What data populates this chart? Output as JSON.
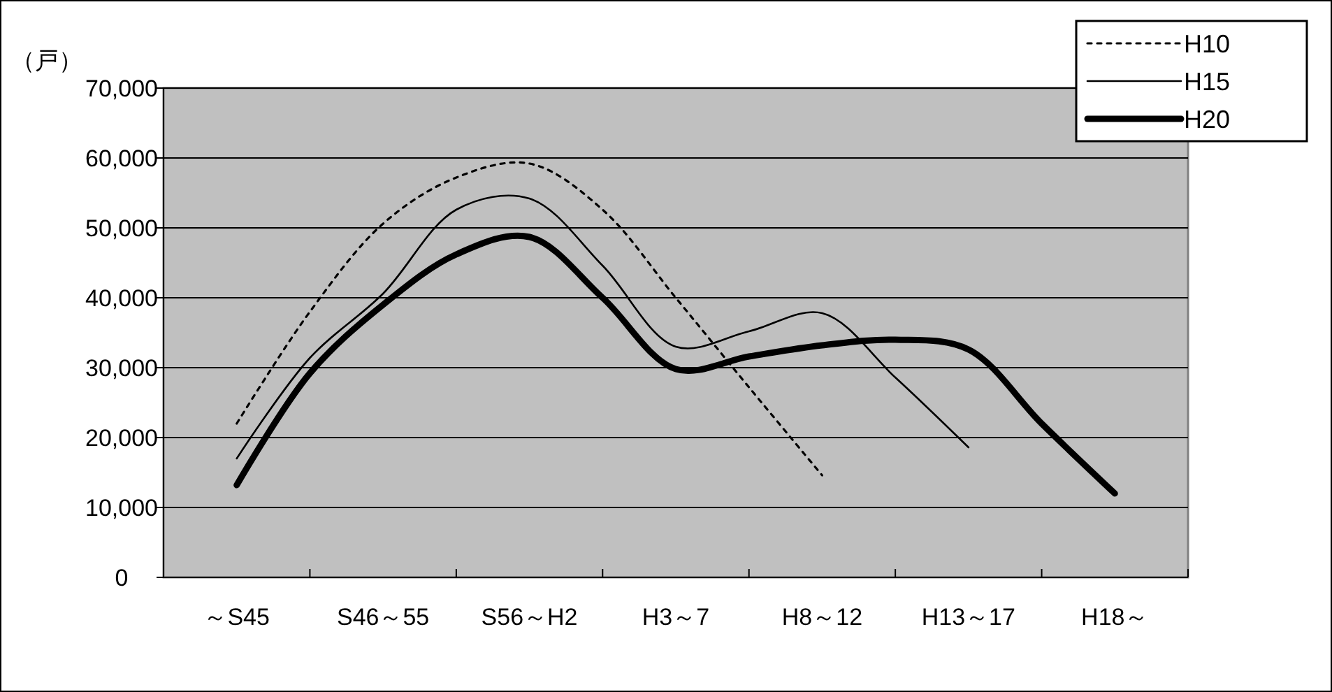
{
  "chart_data": {
    "type": "line",
    "ylabel": "（戸）",
    "categories": [
      "～S45",
      null,
      "S46～55",
      null,
      "S56～H2",
      null,
      "H3～7",
      null,
      "H8～12",
      null,
      "H13～17",
      null,
      "H18～"
    ],
    "series": [
      {
        "name": "H10",
        "color": "#000000",
        "line_style": "dotted",
        "values": [
          22000,
          38000,
          50600,
          57200,
          59200,
          52600,
          40000,
          27200,
          14600,
          null,
          null,
          null,
          null
        ]
      },
      {
        "name": "H15",
        "color": "#000000",
        "line_style": "solid",
        "values": [
          17000,
          31400,
          40600,
          52600,
          54200,
          44600,
          33000,
          35200,
          37800,
          28600,
          18600,
          null,
          null
        ]
      },
      {
        "name": "H20",
        "color": "#000000",
        "line_style": "solid",
        "values": [
          13200,
          29200,
          39000,
          46200,
          48700,
          40000,
          29800,
          31600,
          33200,
          34000,
          32600,
          22000,
          12000
        ]
      }
    ],
    "ylim": [
      0,
      70000
    ],
    "yticks": [
      {
        "value": 0,
        "label": "0"
      },
      {
        "value": 10000,
        "label": "10,000"
      },
      {
        "value": 20000,
        "label": "20,000"
      },
      {
        "value": 30000,
        "label": "30,000"
      },
      {
        "value": 40000,
        "label": "40,000"
      },
      {
        "value": 50000,
        "label": "50,000"
      },
      {
        "value": 60000,
        "label": "60,000"
      },
      {
        "value": 70000,
        "label": "70,000"
      }
    ],
    "grid": "y",
    "legend": "top right",
    "marker": "none"
  }
}
